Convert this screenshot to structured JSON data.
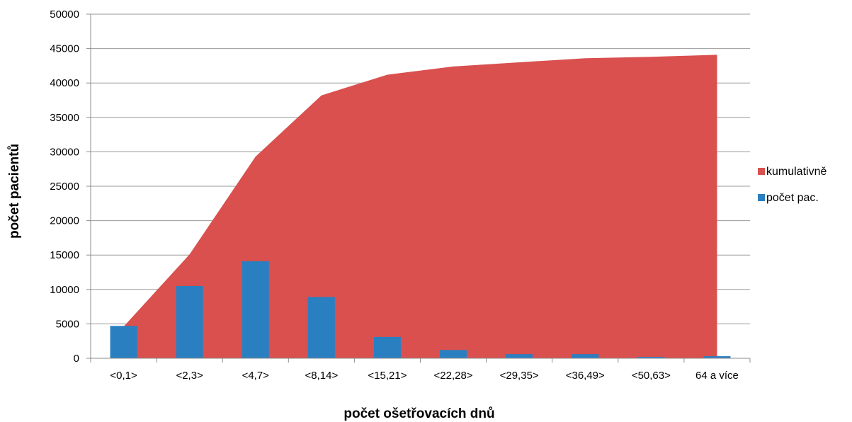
{
  "colors": {
    "cumulative": "#d9504e",
    "count": "#2a7fc1",
    "grid": "#9a9a9a",
    "axis": "#8c8c8c"
  },
  "chart_data": {
    "type": "bar",
    "categories": [
      "<0,1>",
      "<2,3>",
      "<4,7>",
      "<8,14>",
      "<15,21>",
      "<22,28>",
      "<29,35>",
      "<36,49>",
      "<50,63>",
      "64 a více"
    ],
    "series": [
      {
        "name": "kumulativně",
        "type": "area",
        "values": [
          4600,
          15100,
          29300,
          38200,
          41200,
          42400,
          43000,
          43600,
          43800,
          44100
        ]
      },
      {
        "name": "počet pac.",
        "type": "bar",
        "values": [
          4700,
          10500,
          14100,
          8900,
          3100,
          1200,
          600,
          600,
          200,
          300
        ]
      }
    ],
    "xlabel": "počet ošetřovacích dnů",
    "ylabel": "počet pacientů",
    "ylim": [
      0,
      50000
    ],
    "yticks": [
      "0",
      "5000",
      "10000",
      "15000",
      "20000",
      "25000",
      "30000",
      "35000",
      "40000",
      "45000",
      "50000"
    ],
    "grid": true,
    "legend_position": "right"
  }
}
